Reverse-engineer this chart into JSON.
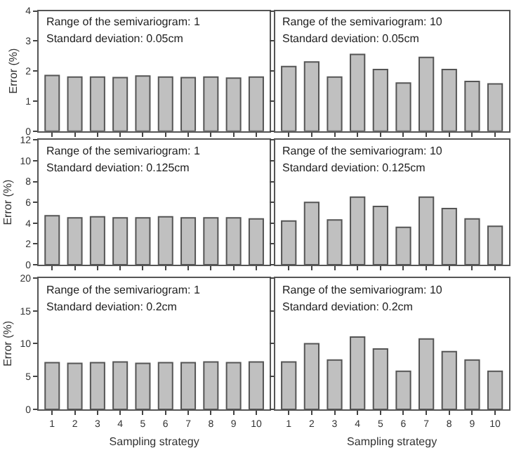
{
  "chart_data": [
    {
      "type": "bar",
      "categories": [
        "1",
        "2",
        "3",
        "4",
        "5",
        "6",
        "7",
        "8",
        "9",
        "10"
      ],
      "values": [
        1.85,
        1.8,
        1.8,
        1.78,
        1.83,
        1.8,
        1.78,
        1.8,
        1.76,
        1.8
      ],
      "color": "#c0c0c0",
      "ylabel": "Error (%)",
      "ylim": [
        0,
        4
      ],
      "yticks": [
        0,
        1,
        2,
        3,
        4
      ],
      "annotations": [
        "Range of the semivariogram: 1",
        "Standard deviation: 0.05cm"
      ],
      "tick_labels": "y"
    },
    {
      "type": "bar",
      "categories": [
        "1",
        "2",
        "3",
        "4",
        "5",
        "6",
        "7",
        "8",
        "9",
        "10"
      ],
      "values": [
        2.15,
        2.3,
        1.8,
        2.55,
        2.05,
        1.6,
        2.45,
        2.05,
        1.65,
        1.57
      ],
      "color": "#c0c0c0",
      "ylim": [
        0,
        4
      ],
      "yticks": [
        0,
        1,
        2,
        3,
        4
      ],
      "annotations": [
        "Range of the semivariogram: 10",
        "Standard deviation: 0.05cm"
      ],
      "tick_labels": false
    },
    {
      "type": "bar",
      "categories": [
        "1",
        "2",
        "3",
        "4",
        "5",
        "6",
        "7",
        "8",
        "9",
        "10"
      ],
      "values": [
        4.7,
        4.5,
        4.6,
        4.5,
        4.5,
        4.6,
        4.5,
        4.5,
        4.5,
        4.4
      ],
      "color": "#c0c0c0",
      "ylabel": "Error (%)",
      "ylim": [
        0,
        12
      ],
      "yticks": [
        0,
        2,
        4,
        6,
        8,
        10,
        12
      ],
      "annotations": [
        "Range of the semivariogram: 1",
        "Standard deviation: 0.125cm"
      ],
      "tick_labels": "y"
    },
    {
      "type": "bar",
      "categories": [
        "1",
        "2",
        "3",
        "4",
        "5",
        "6",
        "7",
        "8",
        "9",
        "10"
      ],
      "values": [
        4.2,
        6.0,
        4.3,
        6.5,
        5.6,
        3.6,
        6.5,
        5.4,
        4.4,
        3.7
      ],
      "color": "#c0c0c0",
      "ylim": [
        0,
        12
      ],
      "yticks": [
        0,
        2,
        4,
        6,
        8,
        10,
        12
      ],
      "annotations": [
        "Range of the semivariogram: 10",
        "Standard deviation: 0.125cm"
      ],
      "tick_labels": false
    },
    {
      "type": "bar",
      "categories": [
        "1",
        "2",
        "3",
        "4",
        "5",
        "6",
        "7",
        "8",
        "9",
        "10"
      ],
      "values": [
        7.1,
        7.0,
        7.1,
        7.2,
        7.0,
        7.1,
        7.1,
        7.2,
        7.1,
        7.2
      ],
      "color": "#c0c0c0",
      "xlabel": "Sampling strategy",
      "ylabel": "Error (%)",
      "ylim": [
        0,
        20
      ],
      "yticks": [
        0,
        5,
        10,
        15,
        20
      ],
      "annotations": [
        "Range of the semivariogram: 1",
        "Standard deviation: 0.2cm"
      ]
    },
    {
      "type": "bar",
      "categories": [
        "1",
        "2",
        "3",
        "4",
        "5",
        "6",
        "7",
        "8",
        "9",
        "10"
      ],
      "values": [
        7.2,
        10.0,
        7.5,
        11.0,
        9.2,
        5.8,
        10.7,
        8.8,
        7.5,
        5.8
      ],
      "color": "#c0c0c0",
      "xlabel": "Sampling strategy",
      "ylim": [
        0,
        20
      ],
      "yticks": [
        0,
        5,
        10,
        15,
        20
      ],
      "annotations": [
        "Range of the semivariogram: 10",
        "Standard deviation: 0.2cm"
      ],
      "tick_labels": "x"
    }
  ]
}
